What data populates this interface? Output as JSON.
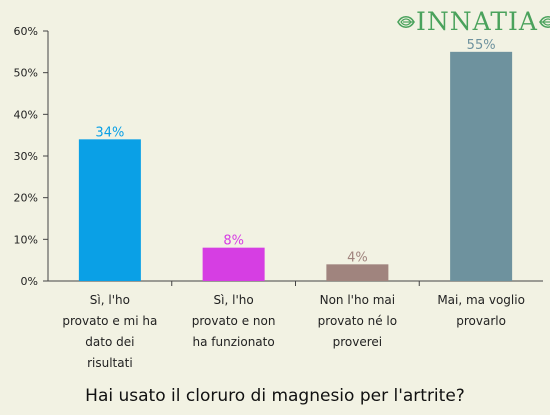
{
  "brand": {
    "name": "INNATIA",
    "leaf_icon": "leaf-icon",
    "color": "#4aa25c"
  },
  "chart_data": {
    "type": "bar",
    "categories": [
      "Sì, l'ho provato e mi ha dato dei risultati",
      "Sì, l'ho provato e non ha funzionato",
      "Non l'ho mai provato né lo proverei",
      "Mai, ma voglio provarlo"
    ],
    "category_lines": [
      [
        "Sì, l'ho",
        "provato e mi ha",
        "dato dei",
        "risultati"
      ],
      [
        "Sì, l'ho",
        "provato e non",
        "ha funzionato"
      ],
      [
        "Non l'ho mai",
        "provato né lo",
        "proverei"
      ],
      [
        "Mai, ma voglio",
        "provarlo"
      ]
    ],
    "values": [
      34,
      8,
      4,
      55
    ],
    "data_labels": [
      "34%",
      "8%",
      "4%",
      "55%"
    ],
    "colors": [
      "#0aa0e6",
      "#d63ee3",
      "#a0847e",
      "#6e929e"
    ],
    "y_ticks": [
      0,
      10,
      20,
      30,
      40,
      50,
      60
    ],
    "y_tick_labels": [
      "0%",
      "10%",
      "20%",
      "30%",
      "40%",
      "50%",
      "60%"
    ],
    "ylim": [
      0,
      60
    ],
    "grid": false,
    "title": "Hai usato il cloruro di magnesio per l'artrite?"
  }
}
